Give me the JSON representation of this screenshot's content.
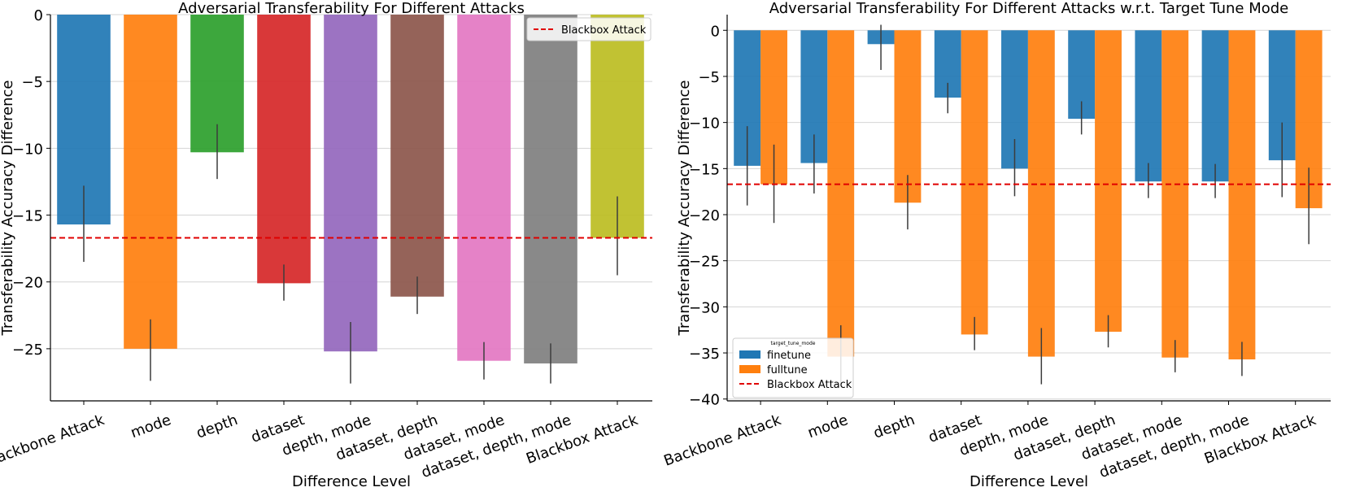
{
  "chart_data": [
    {
      "type": "bar",
      "title": "Adversarial Transferability For Different Attacks",
      "xlabel": "Difference Level",
      "ylabel": "Transferability Accuracy Difference",
      "categories": [
        "Backbone Attack",
        "mode",
        "depth",
        "dataset",
        "depth, mode",
        "dataset, depth",
        "dataset, mode",
        "dataset, depth, mode",
        "Blackbox Attack"
      ],
      "values": [
        -15.7,
        -25.0,
        -10.3,
        -20.1,
        -25.2,
        -21.1,
        -25.9,
        -26.1,
        -16.7
      ],
      "error_low": [
        -18.5,
        -27.4,
        -12.3,
        -21.4,
        -27.6,
        -22.4,
        -27.3,
        -27.6,
        -19.5
      ],
      "error_high": [
        -12.8,
        -22.8,
        -8.2,
        -18.7,
        -23.0,
        -19.6,
        -24.5,
        -24.6,
        -13.6
      ],
      "bar_colors": [
        "#1f77b4",
        "#ff7f0e",
        "#2ca02c",
        "#d62728",
        "#9467bd",
        "#8c564b",
        "#e377c2",
        "#7f7f7f",
        "#bcbd22"
      ],
      "ylim": [
        -28.9,
        0
      ],
      "yticks": [
        0,
        -5,
        -10,
        -15,
        -20,
        -25
      ],
      "ytick_labels": [
        "0",
        "−5",
        "−10",
        "−15",
        "−20",
        "−25"
      ],
      "reference_line": {
        "value": -16.7,
        "label": "Blackbox Attack",
        "color": "#e00000"
      },
      "grid": "y",
      "legend_position": "top-right"
    },
    {
      "type": "bar",
      "title": "Adversarial Transferability For Different Attacks w.r.t. Target Tune Mode",
      "xlabel": "Difference Level",
      "ylabel": "Transferability Accuracy Difference",
      "categories": [
        "Backbone Attack",
        "mode",
        "depth",
        "dataset",
        "depth, mode",
        "dataset, depth",
        "dataset, mode",
        "dataset, depth, mode",
        "Blackbox Attack"
      ],
      "series": [
        {
          "name": "finetune",
          "color": "#1f77b4",
          "values": [
            -14.7,
            -14.4,
            -1.5,
            -7.3,
            -15.0,
            -9.6,
            -16.4,
            -16.4,
            -14.1
          ],
          "error_low": [
            -19.0,
            -17.7,
            -4.3,
            -9.0,
            -18.0,
            -11.3,
            -18.2,
            -18.2,
            -18.1
          ],
          "error_high": [
            -10.4,
            -11.3,
            0.6,
            -5.7,
            -11.8,
            -7.7,
            -14.4,
            -14.5,
            -10.0
          ]
        },
        {
          "name": "fulltune",
          "color": "#ff7f0e",
          "values": [
            -16.7,
            -35.4,
            -18.7,
            -33.0,
            -35.4,
            -32.7,
            -35.5,
            -35.7,
            -19.3
          ],
          "error_low": [
            -20.9,
            -38.4,
            -21.6,
            -34.7,
            -38.4,
            -34.4,
            -37.1,
            -37.5,
            -23.2
          ],
          "error_high": [
            -12.4,
            -32.0,
            -15.7,
            -31.1,
            -32.3,
            -30.9,
            -33.6,
            -33.8,
            -14.9
          ]
        }
      ],
      "ylim": [
        -40.2,
        1.7
      ],
      "yticks": [
        0,
        -5,
        -10,
        -15,
        -20,
        -25,
        -30,
        -35,
        -40
      ],
      "ytick_labels": [
        "0",
        "−5",
        "−10",
        "−15",
        "−20",
        "−25",
        "−30",
        "−35",
        "−40"
      ],
      "reference_line": {
        "value": -16.7,
        "label": "Blackbox Attack",
        "color": "#e00000"
      },
      "legend_title": "target_tune_mode",
      "grid": "y",
      "legend_position": "lower-left"
    }
  ]
}
